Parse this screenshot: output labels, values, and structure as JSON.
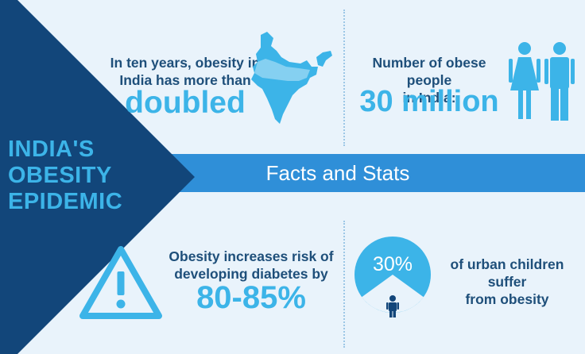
{
  "title": {
    "line1": "INDIA'S",
    "line2": "OBESITY",
    "line3": "EPIDEMIC"
  },
  "banner": {
    "label": "Facts and Stats"
  },
  "stats": {
    "doubled": {
      "line1": "In ten years, obesity in",
      "line2": "India has more than",
      "big": "doubled",
      "icon": "india-map-icon"
    },
    "obese_people": {
      "line1": "Number of obese people",
      "line2": "in India:",
      "big": "30 million",
      "icon": "people-icon"
    },
    "diabetes": {
      "line1": "Obesity increases risk of",
      "line2": "developing diabetes by",
      "big": "80-85%",
      "icon": "warning-icon"
    },
    "children": {
      "percent": "30%",
      "line1": "of urban children suffer",
      "line2": "from obesity",
      "icon": "child-icon",
      "fraction": 0.3
    }
  },
  "colors": {
    "background": "#e9f3fb",
    "navy": "#12467a",
    "banner_blue": "#2f8fd8",
    "accent_blue": "#3cb4e8",
    "text_dark": "#1e4f7a"
  }
}
